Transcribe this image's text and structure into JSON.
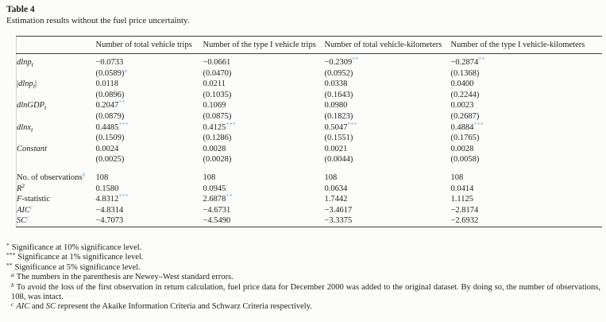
{
  "page": {
    "label": "Table 4",
    "caption": "Estimation results without the fuel price uncertainty."
  },
  "accent_blue": "#6fa8d6",
  "table": {
    "col_headers": [
      "Number of total vehicle trips",
      "Number of the type I vehicle trips",
      "Number of total vehicle-kilometers",
      "Number of the type I vehicle-kilometers"
    ],
    "coef_rows": [
      {
        "label": {
          "main": "dlnp",
          "sub": "t",
          "abs": false
        },
        "coefs": [
          {
            "v": "−0.0733",
            "s": ""
          },
          {
            "v": "−0.0661",
            "s": ""
          },
          {
            "v": "−0.2309",
            "s": "**"
          },
          {
            "v": "−0.2874",
            "s": "**"
          }
        ],
        "ses": [
          {
            "v": "(0.0589)",
            "s": "a"
          },
          {
            "v": "(0.0470)",
            "s": ""
          },
          {
            "v": "(0.0952)",
            "s": ""
          },
          {
            "v": "(0.1368)",
            "s": ""
          }
        ]
      },
      {
        "label": {
          "main": "dlnp",
          "sub": "t",
          "abs": true
        },
        "coefs": [
          {
            "v": "0.0118",
            "s": ""
          },
          {
            "v": "0.0211",
            "s": ""
          },
          {
            "v": "0.0338",
            "s": ""
          },
          {
            "v": "0.0400",
            "s": ""
          }
        ],
        "ses": [
          {
            "v": "(0.0896)",
            "s": ""
          },
          {
            "v": "(0.1035)",
            "s": ""
          },
          {
            "v": "(0.1643)",
            "s": ""
          },
          {
            "v": "(0.2244)",
            "s": ""
          }
        ]
      },
      {
        "label": {
          "main": "dlnGDP",
          "sub": "t",
          "abs": false
        },
        "coefs": [
          {
            "v": "0.2047",
            "s": "**"
          },
          {
            "v": "0.1069",
            "s": ""
          },
          {
            "v": "0.0980",
            "s": ""
          },
          {
            "v": "0.0023",
            "s": ""
          }
        ],
        "ses": [
          {
            "v": "(0.0879)",
            "s": ""
          },
          {
            "v": "(0.0875)",
            "s": ""
          },
          {
            "v": "(0.1823)",
            "s": ""
          },
          {
            "v": "(0.2687)",
            "s": ""
          }
        ]
      },
      {
        "label": {
          "main": "dlnx",
          "sub": "t",
          "abs": false
        },
        "coefs": [
          {
            "v": "0.4485",
            "s": "***"
          },
          {
            "v": "0.4125",
            "s": "***"
          },
          {
            "v": "0.5047",
            "s": "***"
          },
          {
            "v": "0.4884",
            "s": "***"
          }
        ],
        "ses": [
          {
            "v": "(0.1509)",
            "s": ""
          },
          {
            "v": "(0.1286)",
            "s": ""
          },
          {
            "v": "(0.1551)",
            "s": ""
          },
          {
            "v": "(0.1765)",
            "s": ""
          }
        ]
      },
      {
        "label": {
          "main": "Constant",
          "sub": "",
          "abs": false
        },
        "coefs": [
          {
            "v": "0.0024",
            "s": ""
          },
          {
            "v": "0.0028",
            "s": ""
          },
          {
            "v": "0.0021",
            "s": ""
          },
          {
            "v": "0.0028",
            "s": ""
          }
        ],
        "ses": [
          {
            "v": "(0.0025)",
            "s": ""
          },
          {
            "v": "(0.0028)",
            "s": ""
          },
          {
            "v": "(0.0044)",
            "s": ""
          },
          {
            "v": "(0.0058)",
            "s": ""
          }
        ]
      }
    ],
    "stat_rows": [
      {
        "label_main": "No. of observations",
        "label_rest": "",
        "italic": false,
        "sup": "b",
        "sup_blue": true,
        "wrap": true,
        "values": [
          {
            "v": "108",
            "s": ""
          },
          {
            "v": "108",
            "s": ""
          },
          {
            "v": "108",
            "s": ""
          },
          {
            "v": "108",
            "s": ""
          }
        ]
      },
      {
        "label_main": "R",
        "label_rest": "",
        "italic": true,
        "sup": "2",
        "sup_blue": false,
        "wrap": false,
        "values": [
          {
            "v": "0.1580",
            "s": ""
          },
          {
            "v": "0.0945",
            "s": ""
          },
          {
            "v": "0.0634",
            "s": ""
          },
          {
            "v": "0.0414",
            "s": ""
          }
        ]
      },
      {
        "label_main": "F",
        "label_rest": "-statistic",
        "italic": true,
        "sup": "",
        "sup_blue": false,
        "wrap": false,
        "values": [
          {
            "v": "4.8312",
            "s": "***"
          },
          {
            "v": "2.6878",
            "s": "**"
          },
          {
            "v": "1.7442",
            "s": ""
          },
          {
            "v": "1.1125",
            "s": ""
          }
        ]
      },
      {
        "label_main": "AIC",
        "label_rest": "",
        "italic": true,
        "sup": "c",
        "sup_blue": true,
        "wrap": false,
        "values": [
          {
            "v": "−4.8314",
            "s": ""
          },
          {
            "v": "−4.6731",
            "s": ""
          },
          {
            "v": "−3.4617",
            "s": ""
          },
          {
            "v": "−2.8174",
            "s": ""
          }
        ]
      },
      {
        "label_main": "SC",
        "label_rest": "",
        "italic": true,
        "sup": "c",
        "sup_blue": true,
        "wrap": false,
        "values": [
          {
            "v": "−4.7073",
            "s": ""
          },
          {
            "v": "−4.5490",
            "s": ""
          },
          {
            "v": "−3.3375",
            "s": ""
          },
          {
            "v": "−2.6932",
            "s": ""
          }
        ]
      }
    ],
    "footnotes": [
      {
        "marker": "*",
        "letter": false,
        "parts": [
          {
            "t": "Significance at 10% significance level.",
            "i": false
          }
        ]
      },
      {
        "marker": "***",
        "letter": false,
        "parts": [
          {
            "t": "Significance at 1% significance level.",
            "i": false
          }
        ]
      },
      {
        "marker": "**",
        "letter": false,
        "parts": [
          {
            "t": "Significance at 5% significance level.",
            "i": false
          }
        ]
      },
      {
        "marker": "a",
        "letter": true,
        "parts": [
          {
            "t": "The numbers in the parenthesis are Newey–West standard errors.",
            "i": false
          }
        ]
      },
      {
        "marker": "b",
        "letter": true,
        "parts": [
          {
            "t": "To avoid the loss of the first observation in return calculation, fuel price data for December 2000 was added to the original dataset. By doing so, the number of observations, 108, was intact.",
            "i": false
          }
        ]
      },
      {
        "marker": "c",
        "letter": true,
        "parts": [
          {
            "t": "AIC",
            "i": true
          },
          {
            "t": " and ",
            "i": false
          },
          {
            "t": "SC",
            "i": true
          },
          {
            "t": " represent the Akaike Information Criteria and Schwarz Criteria respectively.",
            "i": false
          }
        ]
      }
    ]
  }
}
